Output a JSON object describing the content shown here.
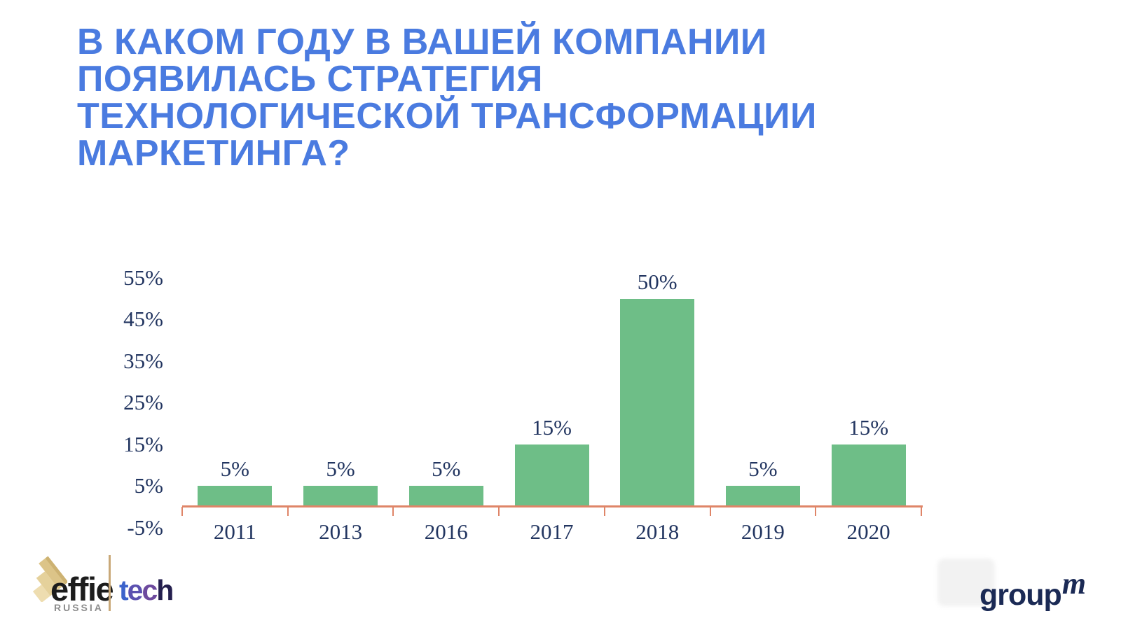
{
  "slide": {
    "title_lines": [
      "В КАКОМ ГОДУ В ВАШЕЙ КОМПАНИИ",
      "ПОЯВИЛАСЬ СТРАТЕГИЯ",
      "ТЕХНОЛОГИЧЕСКОЙ ТРАНСФОРМАЦИИ",
      "МАРКЕТИНГА?"
    ],
    "title_color": "#4a7be0"
  },
  "chart_data": {
    "type": "bar",
    "categories": [
      "2011",
      "2013",
      "2016",
      "2017",
      "2018",
      "2019",
      "2020"
    ],
    "values": [
      5,
      5,
      5,
      15,
      50,
      5,
      15
    ],
    "value_labels": [
      "5%",
      "5%",
      "5%",
      "15%",
      "50%",
      "5%",
      "15%"
    ],
    "y_tick_labels": [
      "55%",
      "45%",
      "35%",
      "25%",
      "15%",
      "5%",
      "-5%"
    ],
    "y_tick_values": [
      55,
      45,
      35,
      25,
      15,
      5,
      -5
    ],
    "ylim": [
      -5,
      55
    ],
    "xlabel": "",
    "ylabel": "",
    "title": "",
    "grid": false,
    "legend": false,
    "bar_color": "#6ebe87",
    "axis_color": "#df8568",
    "label_color": "#223560"
  },
  "footer": {
    "effie": {
      "wordmark": "effie",
      "sub": "RUSSIA"
    },
    "tech": {
      "text": "tech",
      "letter_colors": [
        "#3c63cb",
        "#5b51b0",
        "#6d4a9e",
        "#241f4e"
      ]
    },
    "groupm": {
      "group": "group",
      "m": "m"
    }
  }
}
